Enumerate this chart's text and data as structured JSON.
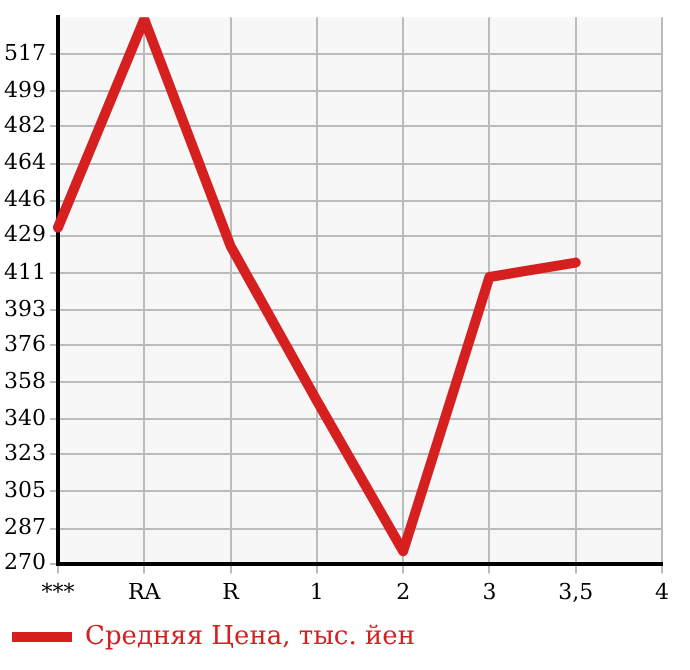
{
  "chart_data": {
    "type": "line",
    "categories": [
      "***",
      "RA",
      "R",
      "1",
      "2",
      "3",
      "3,5",
      "4"
    ],
    "series": [
      {
        "name": "Средняя Цена, тыс. йен",
        "color": "#d61f1f",
        "values": [
          433,
          534,
          424,
          349,
          276,
          409,
          416,
          null
        ]
      }
    ],
    "ylim": [
      270,
      535
    ],
    "yticks": [
      270,
      287,
      305,
      323,
      340,
      358,
      376,
      393,
      411,
      429,
      446,
      464,
      482,
      499,
      517
    ],
    "grid": true,
    "legend": "bottom left",
    "marker": "none"
  }
}
